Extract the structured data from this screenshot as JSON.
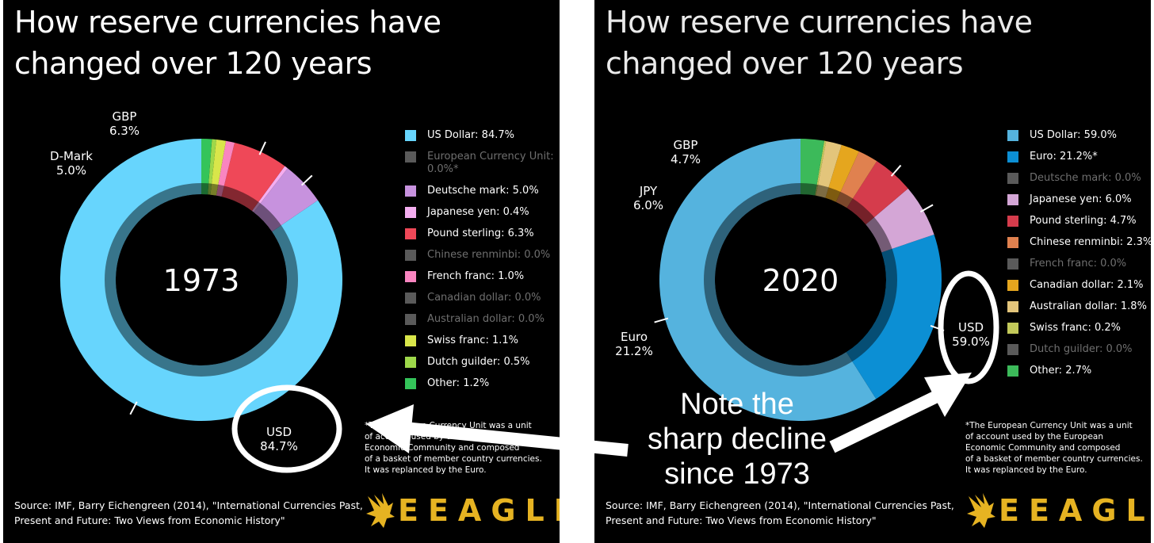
{
  "title_line1": "How reserve currencies have",
  "title_line2": "changed over 120 years",
  "note": [
    "Note the",
    "sharp decline",
    "since 1973"
  ],
  "brand": "EEAGLI",
  "brand_color": "#e6b322",
  "footnote": [
    "*The European Currency Unit was a unit",
    "of account used by the European",
    "Economic Community and composed",
    "of a basket of member country currencies.",
    "It was replanced by the Euro."
  ],
  "source": [
    "Source: IMF, Barry Eichengreen (2014), \"International Currencies Past,",
    "Present and Future: Two Views from Economic History\""
  ],
  "icon": "eagle-logo-icon",
  "chart_data": [
    {
      "type": "donut",
      "center_label": "1973",
      "series": [
        {
          "name": "US Dollar",
          "value": 84.7,
          "color": "#67d5fd",
          "legend": "US Dollar: 84.7%",
          "active": true
        },
        {
          "name": "European Currency Unit",
          "value": 0.0,
          "color": "#5a5a5a",
          "legend": "European Currency Unit: 0.0%*",
          "active": false
        },
        {
          "name": "Deutsche mark",
          "value": 5.0,
          "color": "#c792de",
          "legend": "Deutsche mark: 5.0%",
          "active": true
        },
        {
          "name": "Japanese yen",
          "value": 0.4,
          "color": "#f4aef0",
          "legend": "Japanese yen: 0.4%",
          "active": true
        },
        {
          "name": "Pound sterling",
          "value": 6.3,
          "color": "#ef4858",
          "legend": "Pound sterling: 6.3%",
          "active": true
        },
        {
          "name": "Chinese renminbi",
          "value": 0.0,
          "color": "#5a5a5a",
          "legend": "Chinese renminbi: 0.0%",
          "active": false
        },
        {
          "name": "French franc",
          "value": 1.0,
          "color": "#f985c0",
          "legend": "French franc: 1.0%",
          "active": true
        },
        {
          "name": "Canadian dollar",
          "value": 0.0,
          "color": "#5a5a5a",
          "legend": "Canadian dollar: 0.0%",
          "active": false
        },
        {
          "name": "Australian dollar",
          "value": 0.0,
          "color": "#5a5a5a",
          "legend": "Australian dollar: 0.0%",
          "active": false
        },
        {
          "name": "Swiss franc",
          "value": 1.1,
          "color": "#d9e64a",
          "legend": "Swiss franc: 1.1%",
          "active": true
        },
        {
          "name": "Dutch guilder",
          "value": 0.5,
          "color": "#9ed84a",
          "legend": "Dutch guilder: 0.5%",
          "active": true
        },
        {
          "name": "Other",
          "value": 1.2,
          "color": "#34c45a",
          "legend": "Other: 1.2%",
          "active": true
        }
      ],
      "callouts": [
        {
          "series": "US Dollar",
          "label": "USD",
          "value": "84.7%"
        },
        {
          "series": "Deutsche mark",
          "label": "D-Mark",
          "value": "5.0%"
        },
        {
          "series": "Pound sterling",
          "label": "GBP",
          "value": "6.3%"
        }
      ]
    },
    {
      "type": "donut",
      "center_label": "2020",
      "series": [
        {
          "name": "US Dollar",
          "value": 59.0,
          "color": "#55b3de",
          "legend": "US Dollar: 59.0%",
          "active": true
        },
        {
          "name": "Euro",
          "value": 21.2,
          "color": "#0c8fd4",
          "legend": "Euro: 21.2%*",
          "active": true
        },
        {
          "name": "Deutsche mark",
          "value": 0.0,
          "color": "#5a5a5a",
          "legend": "Deutsche mark: 0.0%",
          "active": false
        },
        {
          "name": "Japanese yen",
          "value": 6.0,
          "color": "#d4a6d6",
          "legend": "Japanese yen: 6.0%",
          "active": true
        },
        {
          "name": "Pound sterling",
          "value": 4.7,
          "color": "#d53c4c",
          "legend": "Pound sterling: 4.7%",
          "active": true
        },
        {
          "name": "Chinese renminbi",
          "value": 2.3,
          "color": "#e0814f",
          "legend": "Chinese renminbi: 2.3%",
          "active": true
        },
        {
          "name": "French franc",
          "value": 0.0,
          "color": "#5a5a5a",
          "legend": "French franc: 0.0%",
          "active": false
        },
        {
          "name": "Canadian dollar",
          "value": 2.1,
          "color": "#e5a61e",
          "legend": "Canadian dollar: 2.1%",
          "active": true
        },
        {
          "name": "Australian dollar",
          "value": 1.8,
          "color": "#e3c57b",
          "legend": "Australian dollar: 1.8%",
          "active": true
        },
        {
          "name": "Swiss franc",
          "value": 0.2,
          "color": "#c3c95a",
          "legend": "Swiss franc: 0.2%",
          "active": true
        },
        {
          "name": "Dutch guilder",
          "value": 0.0,
          "color": "#5a5a5a",
          "legend": "Dutch guilder: 0.0%",
          "active": false
        },
        {
          "name": "Other",
          "value": 2.7,
          "color": "#3cba5a",
          "legend": "Other: 2.7%",
          "active": true
        }
      ],
      "callouts": [
        {
          "series": "US Dollar",
          "label": "USD",
          "value": "59.0%"
        },
        {
          "series": "Euro",
          "label": "Euro",
          "value": "21.2%"
        },
        {
          "series": "Japanese yen",
          "label": "JPY",
          "value": "6.0%"
        },
        {
          "series": "Pound sterling",
          "label": "GBP",
          "value": "4.7%"
        }
      ]
    }
  ]
}
